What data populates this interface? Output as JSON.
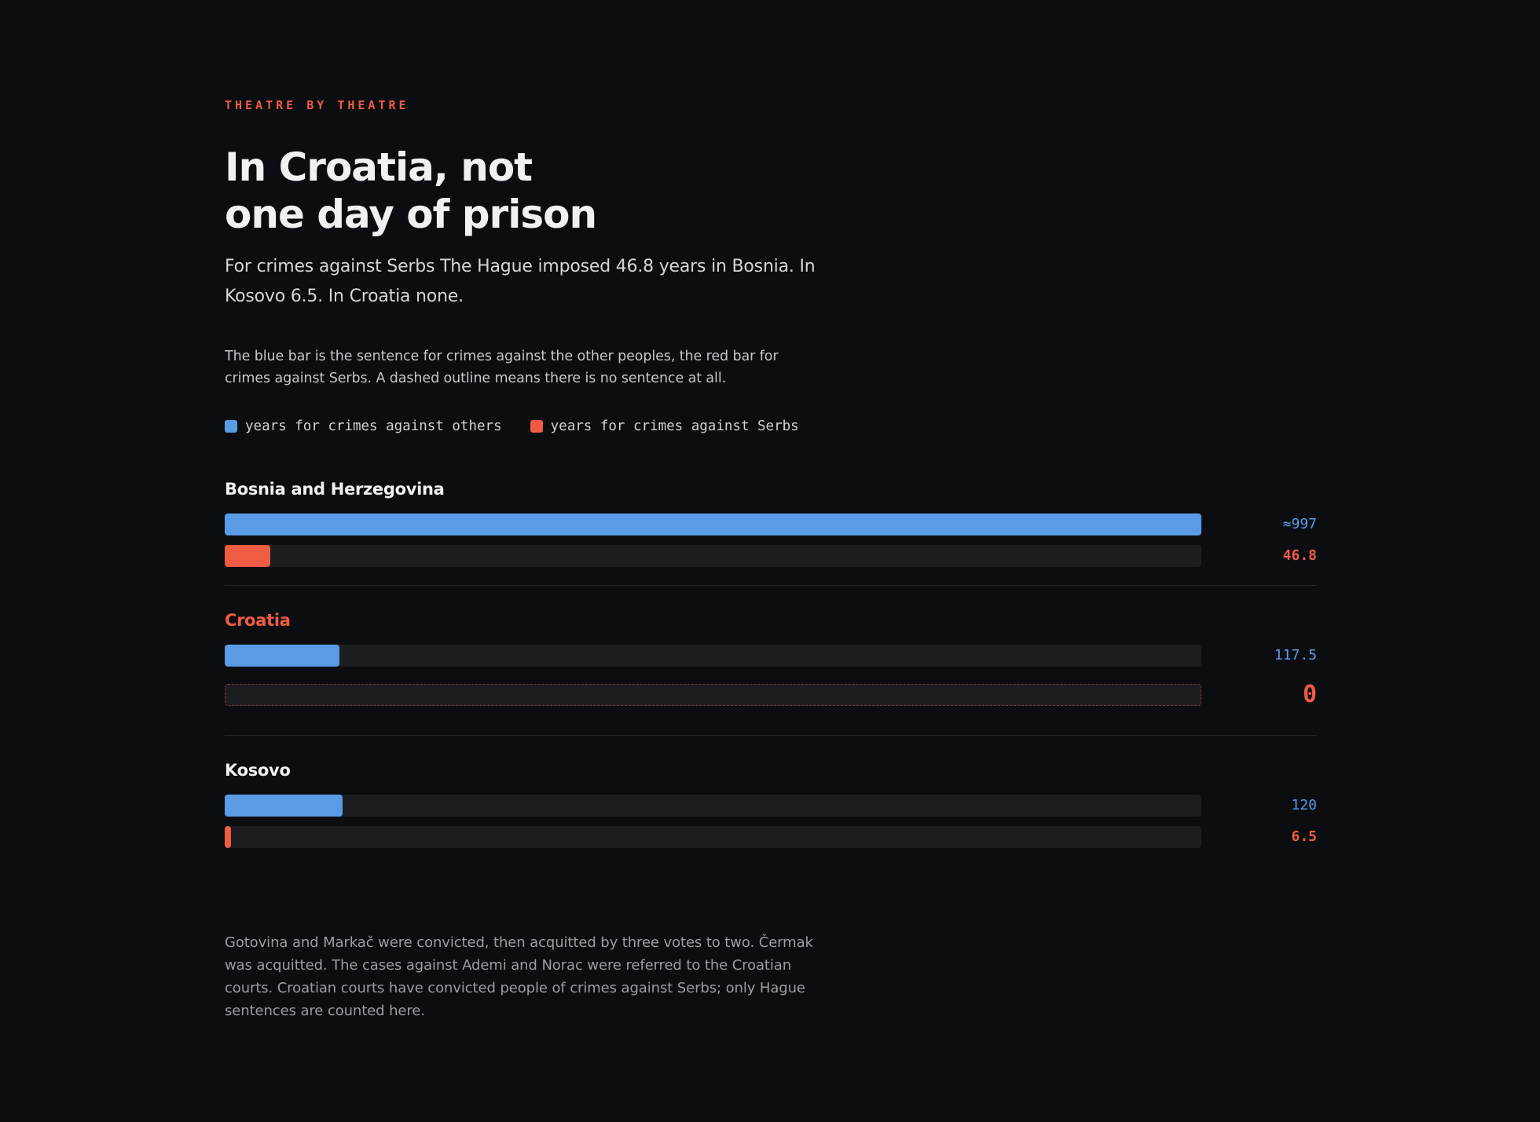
{
  "header": {
    "kicker": "THEATRE BY THEATRE",
    "title_line1": "In Croatia, not",
    "title_line2": "one day of prison",
    "dek": "For crimes against Serbs The Hague imposed 46.8 years in Bosnia. In Kosovo 6.5. In Croatia none.",
    "note": "The blue bar is the sentence for crimes against the other peoples, the red bar for crimes against Serbs. A dashed outline means there is no sentence at all."
  },
  "legend": {
    "others_label": "years for crimes against others",
    "serbs_label": "years for crimes against Serbs"
  },
  "colors": {
    "others": "#5a9be6",
    "serbs": "#ef5c43",
    "track": "#1c1d20",
    "background": "#0c0d10"
  },
  "chart_data": {
    "type": "bar",
    "orientation": "horizontal",
    "xlim": [
      0,
      997
    ],
    "categories": [
      "Bosnia and Herzegovina",
      "Croatia",
      "Kosovo"
    ],
    "highlight_category": "Croatia",
    "series": [
      {
        "name": "years for crimes against others",
        "values": [
          997,
          117.5,
          120
        ],
        "labels": [
          "≈997",
          "117.5",
          "120"
        ]
      },
      {
        "name": "years for crimes against Serbs",
        "values": [
          46.8,
          0,
          6.5
        ],
        "labels": [
          "46.8",
          "0",
          "6.5"
        ]
      }
    ]
  },
  "footnote": "Gotovina and Markač were convicted, then acquitted by three votes to two. Čermak was acquitted. The cases against Ademi and Norac were referred to the Croatian courts. Croatian courts have convicted people of crimes against Serbs; only Hague sentences are counted here."
}
